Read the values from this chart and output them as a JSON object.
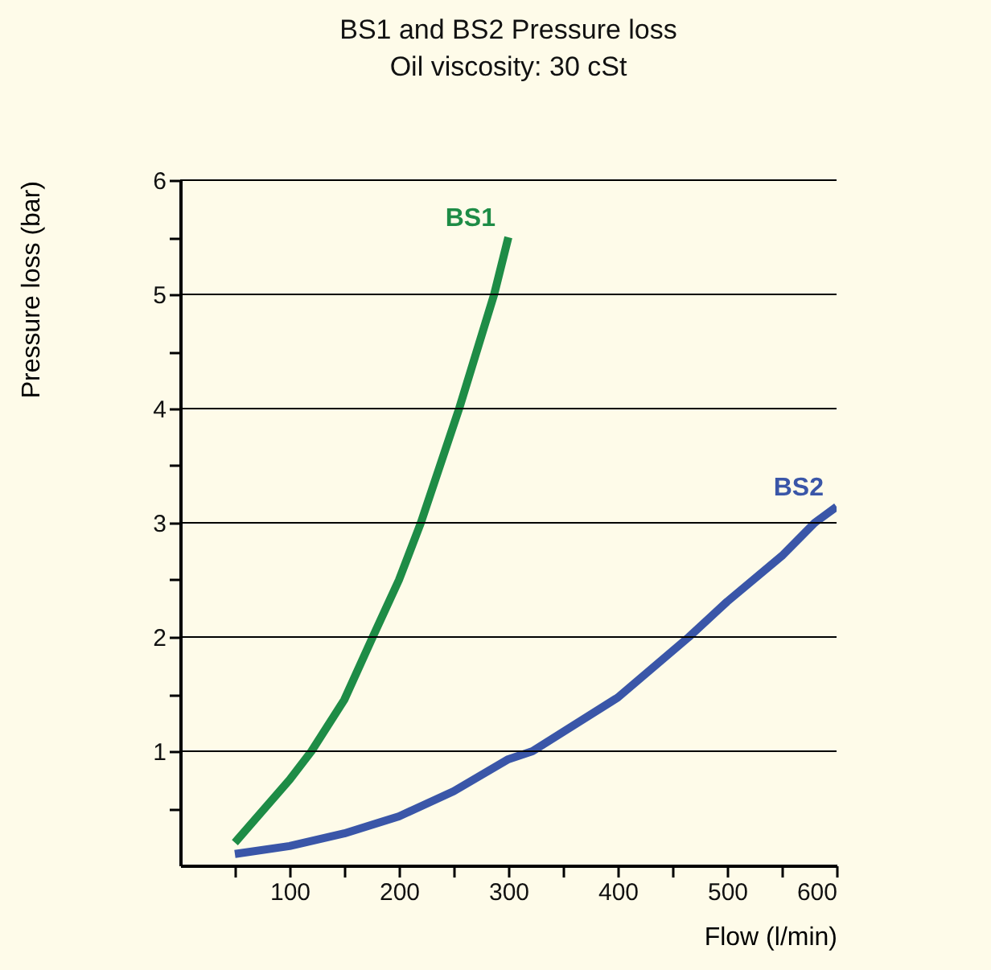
{
  "chart_data": {
    "type": "line",
    "title": "BS1 and BS2 Pressure loss",
    "subtitle": "Oil viscosity: 30 cSt",
    "xlabel": "Flow (l/min)",
    "ylabel": "Pressure loss (bar)",
    "xlim": [
      0,
      600
    ],
    "xticks": [
      {
        "value": 50,
        "label": null
      },
      100,
      {
        "value": 150,
        "label": null
      },
      200,
      {
        "value": 250,
        "label": null
      },
      300,
      {
        "value": 350,
        "label": null
      },
      400,
      {
        "value": 450,
        "label": null
      },
      500,
      {
        "value": 550,
        "label": null
      },
      600
    ],
    "ylim": [
      0,
      6
    ],
    "yticks": [
      {
        "value": 0.5,
        "label": null
      },
      1,
      {
        "value": 1.5,
        "label": null
      },
      2,
      {
        "value": 2.5,
        "label": null
      },
      3,
      {
        "value": 3.5,
        "label": null
      },
      4,
      {
        "value": 4.5,
        "label": null
      },
      5,
      {
        "value": 5.5,
        "label": null
      },
      6
    ],
    "grid": "y",
    "legend": false,
    "marker": "none",
    "line_style": "solid",
    "series": [
      {
        "name": "BS1",
        "color": "#1e8c46",
        "x": [
          50,
          100,
          120,
          150,
          176,
          200,
          220,
          255,
          287,
          300
        ],
        "values": [
          0.2,
          0.75,
          1,
          1.45,
          2,
          2.5,
          3,
          4,
          5,
          5.5
        ]
      },
      {
        "name": "BS2",
        "color": "#3a56a8",
        "x": [
          50,
          100,
          150,
          200,
          250,
          300,
          322,
          400,
          465,
          500,
          550,
          580,
          600
        ],
        "values": [
          0.1,
          0.17,
          0.28,
          0.43,
          0.65,
          0.93,
          1,
          1.47,
          2,
          2.31,
          2.71,
          3,
          3.14
        ]
      }
    ]
  }
}
